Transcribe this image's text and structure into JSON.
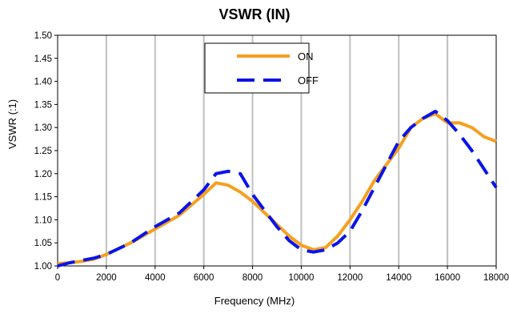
{
  "chart_data": {
    "type": "line",
    "title": "VSWR (IN)",
    "xlabel": "Frequency (MHz)",
    "ylabel": "VSWR (:1)",
    "xlim": [
      0,
      18000
    ],
    "ylim": [
      1.0,
      1.5
    ],
    "x_ticks": [
      0,
      2000,
      4000,
      6000,
      8000,
      10000,
      12000,
      14000,
      16000,
      18000
    ],
    "y_ticks": [
      "1.00",
      "1.05",
      "1.10",
      "1.15",
      "1.20",
      "1.25",
      "1.30",
      "1.35",
      "1.40",
      "1.45",
      "1.50"
    ],
    "grid": "vertical",
    "legend_position": "top-center",
    "series": [
      {
        "name": "ON",
        "color": "#f5a01f",
        "style": "solid",
        "points": [
          [
            0,
            1.005
          ],
          [
            500,
            1.007
          ],
          [
            1000,
            1.01
          ],
          [
            1500,
            1.015
          ],
          [
            2000,
            1.025
          ],
          [
            3000,
            1.05
          ],
          [
            4000,
            1.08
          ],
          [
            5000,
            1.11
          ],
          [
            6000,
            1.155
          ],
          [
            6500,
            1.18
          ],
          [
            7000,
            1.175
          ],
          [
            7500,
            1.16
          ],
          [
            8000,
            1.14
          ],
          [
            8500,
            1.115
          ],
          [
            9000,
            1.09
          ],
          [
            9500,
            1.065
          ],
          [
            10000,
            1.045
          ],
          [
            10500,
            1.035
          ],
          [
            11000,
            1.04
          ],
          [
            11500,
            1.065
          ],
          [
            12000,
            1.1
          ],
          [
            12500,
            1.14
          ],
          [
            13000,
            1.185
          ],
          [
            14000,
            1.255
          ],
          [
            14500,
            1.3
          ],
          [
            15000,
            1.32
          ],
          [
            15500,
            1.33
          ],
          [
            16000,
            1.31
          ],
          [
            16500,
            1.31
          ],
          [
            17000,
            1.3
          ],
          [
            17500,
            1.28
          ],
          [
            18000,
            1.27
          ]
        ]
      },
      {
        "name": "OFF",
        "color": "#0a14e8",
        "style": "dashed",
        "points": [
          [
            0,
            1.0
          ],
          [
            500,
            1.007
          ],
          [
            1000,
            1.012
          ],
          [
            1500,
            1.017
          ],
          [
            2000,
            1.025
          ],
          [
            3000,
            1.05
          ],
          [
            4000,
            1.085
          ],
          [
            5000,
            1.115
          ],
          [
            6000,
            1.165
          ],
          [
            6500,
            1.2
          ],
          [
            7000,
            1.205
          ],
          [
            7500,
            1.2
          ],
          [
            8000,
            1.155
          ],
          [
            8500,
            1.12
          ],
          [
            9000,
            1.085
          ],
          [
            9500,
            1.055
          ],
          [
            10000,
            1.035
          ],
          [
            10500,
            1.03
          ],
          [
            11000,
            1.035
          ],
          [
            11500,
            1.05
          ],
          [
            12000,
            1.075
          ],
          [
            12500,
            1.12
          ],
          [
            13000,
            1.17
          ],
          [
            14000,
            1.27
          ],
          [
            14500,
            1.3
          ],
          [
            15000,
            1.32
          ],
          [
            15500,
            1.335
          ],
          [
            16000,
            1.315
          ],
          [
            16500,
            1.285
          ],
          [
            17000,
            1.25
          ],
          [
            17500,
            1.21
          ],
          [
            18000,
            1.17
          ]
        ]
      }
    ]
  }
}
